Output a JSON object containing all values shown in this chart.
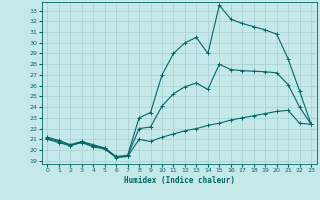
{
  "xlabel": "Humidex (Indice chaleur)",
  "ylabel": "",
  "background_color": "#c5e8e8",
  "grid_color": "#a8d0d0",
  "line_color": "#006868",
  "ylim": [
    18.7,
    33.8
  ],
  "xlim": [
    -0.5,
    23.5
  ],
  "yticks": [
    19,
    20,
    21,
    22,
    23,
    24,
    25,
    26,
    27,
    28,
    29,
    30,
    31,
    32,
    33
  ],
  "xticks": [
    0,
    1,
    2,
    3,
    4,
    5,
    6,
    7,
    8,
    9,
    10,
    11,
    12,
    13,
    14,
    15,
    16,
    17,
    18,
    19,
    20,
    21,
    22,
    23
  ],
  "line_min": {
    "x": [
      0,
      1,
      2,
      3,
      4,
      5,
      6,
      7,
      8,
      9,
      10,
      11,
      12,
      13,
      14,
      15,
      16,
      17,
      18,
      19,
      20,
      21,
      22,
      23
    ],
    "y": [
      21.0,
      20.7,
      20.4,
      20.7,
      20.3,
      20.1,
      19.3,
      19.4,
      21.0,
      20.8,
      21.2,
      21.5,
      21.8,
      22.0,
      22.3,
      22.5,
      22.8,
      23.0,
      23.2,
      23.4,
      23.6,
      23.7,
      22.5,
      22.4
    ]
  },
  "line_max": {
    "x": [
      0,
      1,
      2,
      3,
      4,
      5,
      6,
      7,
      8,
      9,
      10,
      11,
      12,
      13,
      14,
      15,
      16,
      17,
      18,
      19,
      20,
      21,
      22,
      23
    ],
    "y": [
      21.2,
      20.9,
      20.5,
      20.8,
      20.5,
      20.2,
      19.4,
      19.5,
      23.0,
      23.5,
      27.0,
      29.0,
      30.0,
      30.5,
      29.0,
      33.5,
      32.2,
      31.8,
      31.5,
      31.2,
      30.8,
      28.5,
      25.5,
      22.4
    ]
  },
  "line_avg": {
    "x": [
      0,
      1,
      2,
      3,
      4,
      5,
      6,
      7,
      8,
      9,
      10,
      11,
      12,
      13,
      14,
      15,
      16,
      17,
      18,
      19,
      20,
      21,
      22,
      23
    ],
    "y": [
      21.1,
      20.8,
      20.45,
      20.75,
      20.4,
      20.15,
      19.35,
      19.45,
      22.0,
      22.15,
      24.1,
      25.25,
      25.9,
      26.25,
      25.65,
      28.0,
      27.5,
      27.4,
      27.35,
      27.3,
      27.2,
      26.1,
      24.0,
      22.4
    ]
  }
}
